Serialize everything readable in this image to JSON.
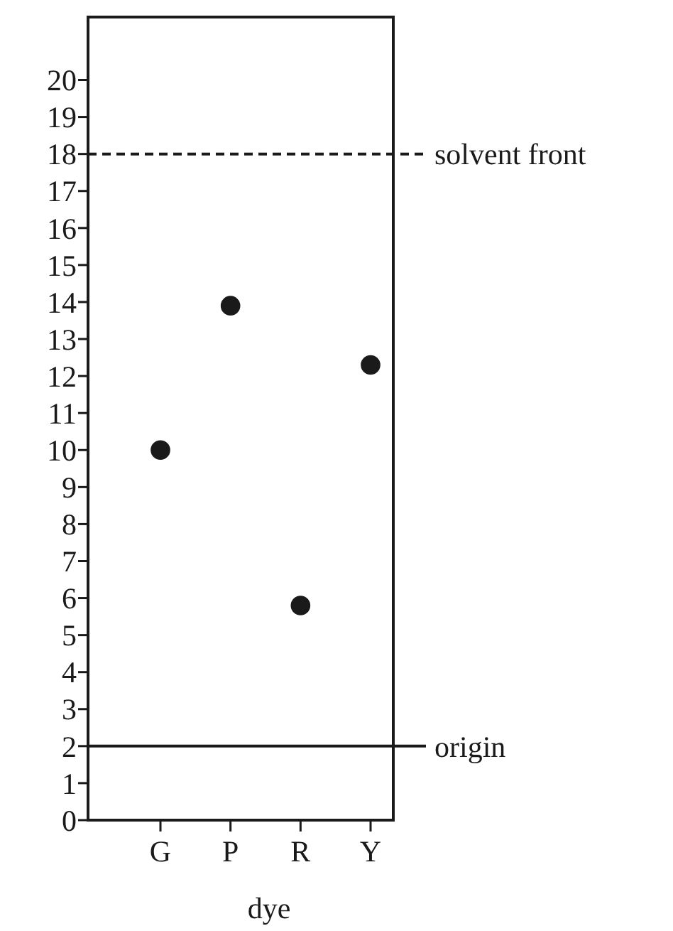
{
  "chart_data": {
    "type": "scatter",
    "xlabel": "dye",
    "categories": [
      "G",
      "P",
      "R",
      "Y"
    ],
    "series": [
      {
        "color": "#1a1a1a",
        "values": [
          10,
          13.9,
          5.8,
          12.3
        ]
      }
    ],
    "ylim": [
      0,
      21.7
    ],
    "yticks": [
      0,
      1,
      2,
      3,
      4,
      5,
      6,
      7,
      8,
      9,
      10,
      11,
      12,
      13,
      14,
      15,
      16,
      17,
      18,
      19,
      20
    ],
    "marker": "circle",
    "grid": false,
    "ref_lines": [
      {
        "axis": "y",
        "value": 18,
        "label": "solvent front",
        "line_style": "dashed"
      },
      {
        "axis": "y",
        "value": 2,
        "label": "origin",
        "line_style": "solid"
      }
    ]
  }
}
